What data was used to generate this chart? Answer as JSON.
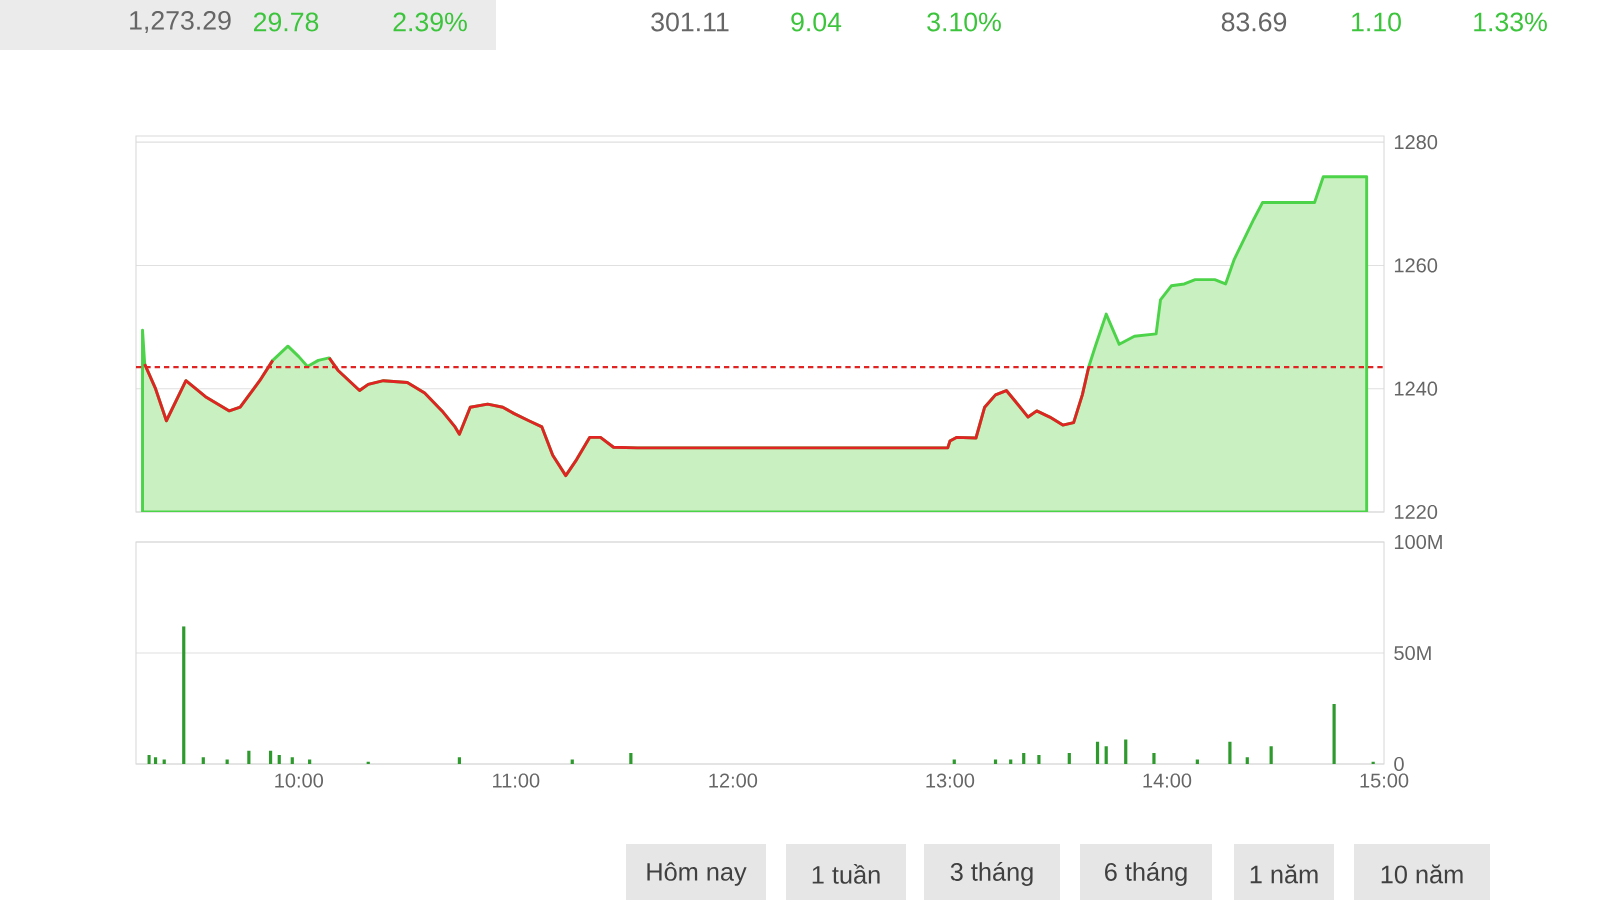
{
  "chart_data": [
    {
      "type": "area",
      "xlim": [
        9.25,
        15
      ],
      "ylim": [
        1220,
        1281
      ],
      "yticks": [
        1220,
        1240,
        1260,
        1280
      ],
      "grid": "y",
      "tick_labels": "y",
      "ref_lines": [
        {
          "axis": "y",
          "value": 1243.5,
          "color": "#e02424",
          "line_style": "dashed"
        }
      ],
      "annotations": [
        "1,273.29",
        "29.78",
        "2.39%",
        "301.11",
        "9.04",
        "3.10%",
        "83.69",
        "1.10",
        "1.33%"
      ],
      "series": [
        {
          "color": "#c9f0c0",
          "x": [
            9.28,
            9.29,
            9.34,
            9.39,
            9.48,
            9.57,
            9.68,
            9.73,
            9.82,
            9.88,
            9.95,
            10.0,
            10.04,
            10.09,
            10.14,
            10.18,
            10.28,
            10.32,
            10.39,
            10.5,
            10.58,
            10.66,
            10.72,
            10.74,
            10.79,
            10.87,
            10.94,
            10.99,
            11.06,
            11.12,
            11.17,
            11.23,
            11.28,
            11.34,
            11.39,
            11.45,
            11.56,
            12.99,
            13.0,
            13.03,
            13.12,
            13.16,
            13.21,
            13.26,
            13.3,
            13.36,
            13.4,
            13.46,
            13.52,
            13.57,
            13.61,
            13.64,
            13.67,
            13.72,
            13.78,
            13.85,
            13.95,
            13.97,
            14.02,
            14.08,
            14.13,
            14.22,
            14.27,
            14.31,
            14.4,
            14.44,
            14.68,
            14.72,
            14.92
          ],
          "values": [
            1249.5,
            1244,
            1240,
            1234.8,
            1241.3,
            1238.7,
            1236.4,
            1237,
            1241.3,
            1244.6,
            1246.9,
            1245.2,
            1243.6,
            1244.6,
            1245,
            1243,
            1239.7,
            1240.7,
            1241.3,
            1241,
            1239.3,
            1236.4,
            1233.8,
            1232.6,
            1237,
            1237.5,
            1237,
            1236,
            1234.8,
            1233.8,
            1229.2,
            1225.9,
            1228.5,
            1232.1,
            1232.1,
            1230.5,
            1230.4,
            1230.4,
            1231.5,
            1232.1,
            1232,
            1237,
            1239,
            1239.7,
            1238,
            1235.4,
            1236.4,
            1235.4,
            1234.1,
            1234.5,
            1239,
            1243.6,
            1246.9,
            1252.1,
            1247.2,
            1248.5,
            1248.9,
            1254.4,
            1256.7,
            1257,
            1257.7,
            1257.7,
            1257,
            1261,
            1267.5,
            1270.2,
            1270.2,
            1274.4,
            1274.4
          ]
        },
        {
          "type": "line",
          "color": "#e02424",
          "x": [
            9.29,
            9.34,
            9.39,
            9.48,
            9.57,
            9.68,
            9.73,
            9.82,
            9.88,
            9.95,
            10.0,
            10.04,
            10.09,
            10.14,
            10.18,
            10.28,
            10.32,
            10.39,
            10.5,
            10.58,
            10.66,
            10.72,
            10.74,
            10.79,
            10.87,
            10.94,
            10.99,
            11.06,
            11.12,
            11.17,
            11.23,
            11.28,
            11.34,
            11.39,
            11.45,
            11.56,
            12.99,
            13.0,
            13.03,
            13.12,
            13.16,
            13.21,
            13.26,
            13.3,
            13.36,
            13.4,
            13.46,
            13.52,
            13.57,
            13.61,
            13.64
          ],
          "values": [
            1244,
            1240,
            1234.8,
            1241.3,
            1238.7,
            1236.4,
            1237,
            1241.3,
            1244.6,
            null,
            null,
            null,
            null,
            1245,
            1243,
            1239.7,
            1240.7,
            1241.3,
            1241,
            1239.3,
            1236.4,
            1233.8,
            1232.6,
            1237,
            1237.5,
            1237,
            1236,
            1234.8,
            1233.8,
            1229.2,
            1225.9,
            1228.5,
            1232.1,
            1232.1,
            1230.5,
            1230.4,
            1230.4,
            1231.5,
            1232.1,
            1232,
            1237,
            1239,
            1239.7,
            1238,
            1235.4,
            1236.4,
            1235.4,
            1234.1,
            1234.5,
            1239,
            1243.6
          ]
        }
      ]
    },
    {
      "type": "bar",
      "xlim": [
        9.25,
        15
      ],
      "ylim": [
        0,
        100
      ],
      "grid": "y",
      "yticks": [
        0,
        {
          "value": 50,
          "label": "50M"
        },
        {
          "value": 100,
          "label": "100M"
        }
      ],
      "xticks": [
        {
          "value": 10,
          "label": "10:00"
        },
        {
          "value": 11,
          "label": "11:00"
        },
        {
          "value": 12,
          "label": "12:00"
        },
        {
          "value": 13,
          "label": "13:00"
        },
        {
          "value": 14,
          "label": "14:00"
        },
        {
          "value": 15,
          "label": "15:00"
        }
      ],
      "annotations": [
        "Hôm nay",
        "1 tuần",
        "3 tháng",
        "6 tháng",
        "1 năm",
        "10 năm"
      ],
      "series": [
        {
          "color": "#2e9a2e",
          "x": [
            9.31,
            9.34,
            9.38,
            9.47,
            9.56,
            9.67,
            9.77,
            9.87,
            9.91,
            9.97,
            10.05,
            10.32,
            10.74,
            11.26,
            11.53,
            13.02,
            13.21,
            13.28,
            13.34,
            13.41,
            13.55,
            13.68,
            13.72,
            13.81,
            13.94,
            14.14,
            14.29,
            14.37,
            14.48,
            14.77,
            14.95
          ],
          "values": [
            4,
            3,
            2,
            62,
            3,
            2,
            6,
            6,
            4,
            3,
            2,
            1,
            3,
            2,
            5,
            2,
            2,
            2,
            5,
            4,
            5,
            10,
            8,
            11,
            5,
            2,
            10,
            3,
            8,
            27,
            1
          ]
        }
      ]
    }
  ]
}
